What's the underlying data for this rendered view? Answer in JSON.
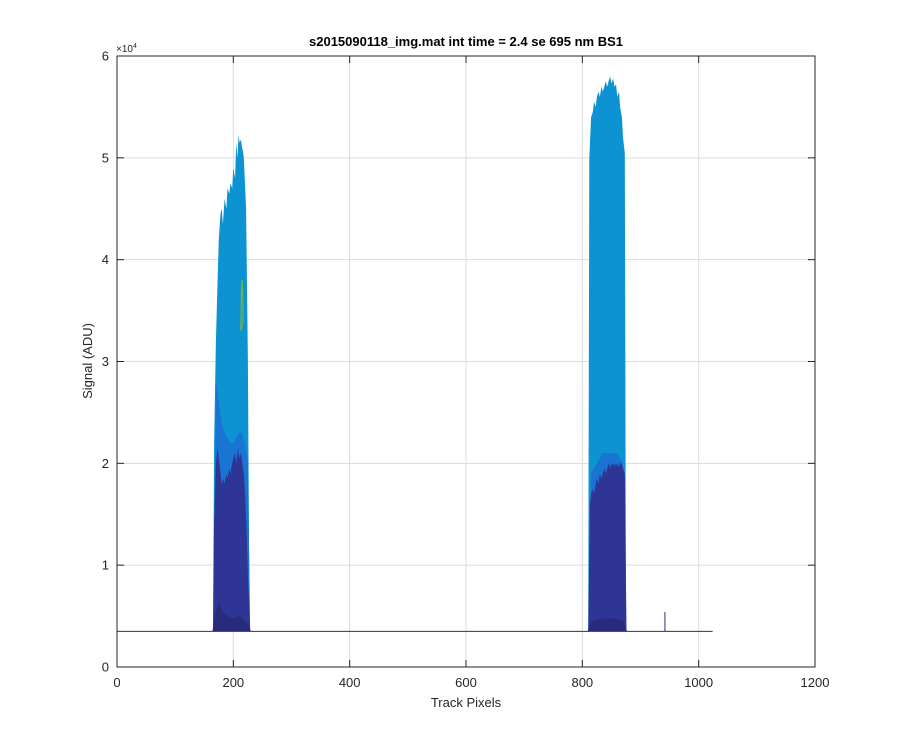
{
  "chart_data": {
    "type": "area",
    "title": "s2015090118_img.mat int time = 2.4 se  695 nm BS1",
    "xlabel": "Track Pixels",
    "ylabel": "Signal (ADU)",
    "xlim": [
      0,
      1200
    ],
    "ylim": [
      0,
      60000
    ],
    "x_ticks": [
      0,
      200,
      400,
      600,
      800,
      1000,
      1200
    ],
    "x_tick_labels": [
      "0",
      "200",
      "400",
      "600",
      "800",
      "1000",
      "1200"
    ],
    "y_ticks": [
      0,
      10000,
      20000,
      30000,
      40000,
      50000,
      60000
    ],
    "y_tick_labels": [
      "0",
      "1",
      "2",
      "3",
      "4",
      "5",
      "6"
    ],
    "y_exponent_label": "×10",
    "y_exponent_power": "4",
    "grid": true,
    "baseline": 3500,
    "baseline_x_range": [
      0,
      1024
    ],
    "spike": {
      "x": 942,
      "y": 5400
    },
    "colors": {
      "bright": "#0e93d2",
      "mid": "#1a74d1",
      "dark": "#2e3595",
      "darkest": "#282a7c",
      "green": "#74b045",
      "baseline": "#2a2d80",
      "grid": "#dcdcdc",
      "axis": "#262626"
    },
    "series": [
      {
        "layer": "bright",
        "x": [
          165,
          167,
          170,
          173,
          175,
          178,
          180,
          182,
          185,
          188,
          190,
          193,
          195,
          198,
          200,
          203,
          205,
          207,
          209,
          211,
          213,
          215,
          217,
          218,
          222,
          225,
          228
        ],
        "y": [
          3500,
          22000,
          32000,
          38000,
          42000,
          44500,
          45000,
          43500,
          46000,
          45000,
          47000,
          46500,
          47500,
          47000,
          49000,
          48000,
          51500,
          50000,
          52200,
          51500,
          51800,
          51000,
          50500,
          50000,
          45000,
          30000,
          3500
        ]
      },
      {
        "layer": "bright",
        "x": [
          810,
          812,
          815,
          818,
          820,
          823,
          825,
          828,
          830,
          833,
          835,
          838,
          840,
          843,
          845,
          848,
          850,
          853,
          855,
          858,
          860,
          863,
          865,
          868,
          870,
          873,
          875
        ],
        "y": [
          3500,
          50000,
          54000,
          54500,
          55500,
          55000,
          56000,
          56500,
          56000,
          57000,
          56500,
          57000,
          57500,
          57000,
          57500,
          58000,
          57300,
          57800,
          57000,
          57200,
          56000,
          56500,
          55000,
          54000,
          52000,
          50500,
          3500
        ]
      },
      {
        "layer": "mid",
        "x": [
          166,
          170,
          175,
          180,
          185,
          190,
          195,
          200,
          205,
          210,
          215,
          220,
          225,
          229
        ],
        "y": [
          3500,
          28000,
          26000,
          24000,
          23000,
          22500,
          22000,
          22000,
          22500,
          23000,
          23000,
          22000,
          20000,
          3500
        ]
      },
      {
        "layer": "mid",
        "x": [
          811,
          815,
          820,
          825,
          830,
          835,
          840,
          845,
          850,
          855,
          860,
          865,
          870,
          875
        ],
        "y": [
          3500,
          19000,
          19500,
          20000,
          20500,
          21000,
          21000,
          21000,
          21000,
          21000,
          21000,
          20500,
          20000,
          3500
        ]
      },
      {
        "layer": "dark",
        "x": [
          165,
          167,
          170,
          173,
          175,
          178,
          180,
          183,
          185,
          188,
          190,
          193,
          195,
          198,
          200,
          203,
          205,
          208,
          210,
          213,
          215,
          218,
          220,
          223,
          225,
          228,
          229
        ],
        "y": [
          3500,
          14000,
          20000,
          21500,
          20500,
          19000,
          18000,
          18500,
          18000,
          19000,
          18500,
          19500,
          19000,
          20000,
          20500,
          21000,
          20000,
          21500,
          20500,
          21000,
          20000,
          19000,
          17000,
          13000,
          9000,
          5000,
          3500
        ]
      },
      {
        "layer": "dark",
        "x": [
          810,
          813,
          815,
          818,
          820,
          823,
          825,
          828,
          830,
          833,
          835,
          838,
          840,
          843,
          845,
          848,
          850,
          853,
          855,
          858,
          860,
          863,
          865,
          868,
          870,
          873,
          876
        ],
        "y": [
          3500,
          16000,
          17000,
          17500,
          17000,
          18000,
          18500,
          18000,
          19000,
          18500,
          19000,
          19500,
          19000,
          19500,
          20000,
          19500,
          20000,
          19800,
          20000,
          19700,
          20000,
          19600,
          20100,
          19800,
          19500,
          19000,
          3500
        ]
      },
      {
        "layer": "darkest",
        "x": [
          164,
          170,
          175,
          180,
          190,
          200,
          210,
          220,
          225,
          230
        ],
        "y": [
          3500,
          5500,
          6500,
          5500,
          5000,
          4800,
          5000,
          4600,
          4200,
          3500
        ]
      },
      {
        "layer": "darkest",
        "x": [
          809,
          815,
          820,
          830,
          840,
          850,
          860,
          870,
          877
        ],
        "y": [
          3500,
          4400,
          4600,
          4700,
          4800,
          4800,
          4700,
          4500,
          3500
        ]
      },
      {
        "layer": "green",
        "x": [
          213,
          214,
          215,
          216,
          217
        ],
        "y": [
          33000,
          37000,
          38000,
          37000,
          34000
        ]
      }
    ]
  }
}
